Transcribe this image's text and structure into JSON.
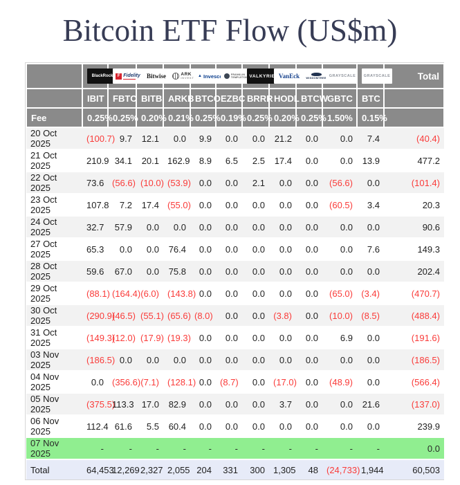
{
  "page": {
    "title": "Bitcoin ETF Flow (US$m)"
  },
  "header": {
    "total_column_label": "Total",
    "fee_row_label": "Fee",
    "issuers": [
      {
        "name": "BlackRock",
        "style": "blackrock"
      },
      {
        "name": "Fidelity",
        "style": "fidelity",
        "icon": "fidelity-f-square"
      },
      {
        "name": "Bitwise",
        "style": "bitwise"
      },
      {
        "name": "ARK INVEST",
        "style": "ark",
        "icon": "ark-globe"
      },
      {
        "name": "Invesco",
        "style": "invesco",
        "icon": "invesco-triangle"
      },
      {
        "name": "FRANKLIN TEMPLETON",
        "style": "franklin",
        "icon": "franklin-bust"
      },
      {
        "name": "VALKYRIE",
        "style": "valkyrie"
      },
      {
        "name": "VanEck",
        "style": "vaneck"
      },
      {
        "name": "WISDOMTREE",
        "style": "wisdomtree",
        "icon": "wisdomtree-tree"
      },
      {
        "name": "GRAYSCALE",
        "style": "grayscale"
      },
      {
        "name": "GRAYSCALE",
        "style": "grayscale"
      }
    ]
  },
  "footer": {
    "totals_row_label": "Total"
  },
  "colors": {
    "title_text": "#373c55",
    "header_bg": "#8a8a8a",
    "header_text": "#ffffff",
    "row_stripe": "#f2f2f2",
    "negative_red": "#fa3b39",
    "highlight_green": "#90ee90",
    "totals_row_bg": "#e7ebf8"
  },
  "chart_data": {
    "type": "table",
    "title": "Bitcoin ETF Flow (US$m)",
    "columns": [
      "IBIT",
      "FBTC",
      "BITB",
      "ARKB",
      "BTCO",
      "EZBC",
      "BRRR",
      "HODL",
      "BTCW",
      "GBTC",
      "BTC"
    ],
    "fees": [
      "0.25%",
      "0.25%",
      "0.20%",
      "0.21%",
      "0.25%",
      "0.19%",
      "0.25%",
      "0.20%",
      "0.25%",
      "1.50%",
      "0.15%"
    ],
    "total_column": "Total",
    "negative_format": "parentheses-red",
    "null_display": "-",
    "rows": [
      {
        "date": "20 Oct 2025",
        "values": [
          -100.7,
          9.7,
          12.1,
          0.0,
          9.9,
          0.0,
          0.0,
          21.2,
          0.0,
          0.0,
          7.4
        ],
        "total": -40.4
      },
      {
        "date": "21 Oct 2025",
        "values": [
          210.9,
          34.1,
          20.1,
          162.9,
          8.9,
          6.5,
          2.5,
          17.4,
          0.0,
          0.0,
          13.9
        ],
        "total": 477.2
      },
      {
        "date": "22 Oct 2025",
        "values": [
          73.6,
          -56.6,
          -10.0,
          -53.9,
          0.0,
          0.0,
          2.1,
          0.0,
          0.0,
          -56.6,
          0.0
        ],
        "total": -101.4
      },
      {
        "date": "23 Oct 2025",
        "values": [
          107.8,
          7.2,
          17.4,
          -55.0,
          0.0,
          0.0,
          0.0,
          0.0,
          0.0,
          -60.5,
          3.4
        ],
        "total": 20.3
      },
      {
        "date": "24 Oct 2025",
        "values": [
          32.7,
          57.9,
          0.0,
          0.0,
          0.0,
          0.0,
          0.0,
          0.0,
          0.0,
          0.0,
          0.0
        ],
        "total": 90.6
      },
      {
        "date": "27 Oct 2025",
        "values": [
          65.3,
          0.0,
          0.0,
          76.4,
          0.0,
          0.0,
          0.0,
          0.0,
          0.0,
          0.0,
          7.6
        ],
        "total": 149.3
      },
      {
        "date": "28 Oct 2025",
        "values": [
          59.6,
          67.0,
          0.0,
          75.8,
          0.0,
          0.0,
          0.0,
          0.0,
          0.0,
          0.0,
          0.0
        ],
        "total": 202.4
      },
      {
        "date": "29 Oct 2025",
        "values": [
          -88.1,
          -164.4,
          -6.0,
          -143.8,
          0.0,
          0.0,
          0.0,
          0.0,
          0.0,
          -65.0,
          -3.4
        ],
        "total": -470.7
      },
      {
        "date": "30 Oct 2025",
        "values": [
          -290.9,
          -46.5,
          -55.1,
          -65.6,
          -8.0,
          0.0,
          0.0,
          -3.8,
          0.0,
          -10.0,
          -8.5
        ],
        "total": -488.4
      },
      {
        "date": "31 Oct 2025",
        "values": [
          -149.3,
          -12.0,
          -17.9,
          -19.3,
          0.0,
          0.0,
          0.0,
          0.0,
          0.0,
          6.9,
          0.0
        ],
        "total": -191.6
      },
      {
        "date": "03 Nov 2025",
        "values": [
          -186.5,
          0.0,
          0.0,
          0.0,
          0.0,
          0.0,
          0.0,
          0.0,
          0.0,
          0.0,
          0.0
        ],
        "total": -186.5
      },
      {
        "date": "04 Nov 2025",
        "values": [
          0.0,
          -356.6,
          -7.1,
          -128.1,
          0.0,
          -8.7,
          0.0,
          -17.0,
          0.0,
          -48.9,
          0.0
        ],
        "total": -566.4
      },
      {
        "date": "05 Nov 2025",
        "values": [
          -375.5,
          113.3,
          17.0,
          82.9,
          0.0,
          0.0,
          0.0,
          3.7,
          0.0,
          0.0,
          21.6
        ],
        "total": -137.0
      },
      {
        "date": "06 Nov 2025",
        "values": [
          112.4,
          61.6,
          5.5,
          60.4,
          0.0,
          0.0,
          0.0,
          0.0,
          0.0,
          0.0,
          0.0
        ],
        "total": 239.9
      },
      {
        "date": "07 Nov 2025",
        "values": [
          null,
          null,
          null,
          null,
          null,
          null,
          null,
          null,
          null,
          null,
          null
        ],
        "total": 0.0,
        "highlight": true
      }
    ],
    "totals": {
      "values": [
        64453,
        12269,
        2327,
        2055,
        204,
        331,
        300,
        1305,
        48,
        -24733,
        1944
      ],
      "total": 60503
    }
  }
}
